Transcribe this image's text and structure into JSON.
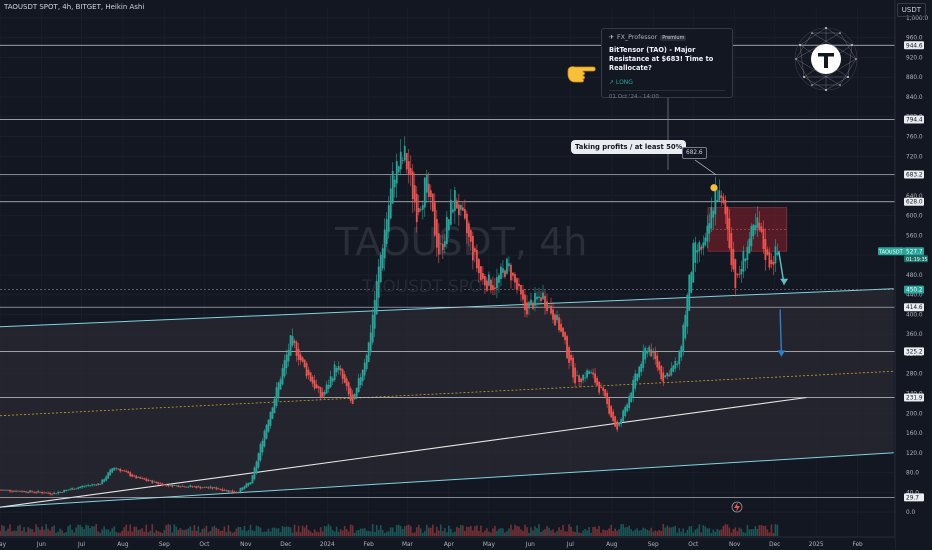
{
  "header": {
    "symbol_text": "TAOUSDT SPOT, 4h, BITGET, Heikin Ashi",
    "currency": "USDT"
  },
  "watermark": {
    "main": "TAOUSDT, 4h",
    "sub": "TAOUSDT SPOT"
  },
  "idea_popup": {
    "author": "FX_Professor",
    "badge": "Premium",
    "title": "BitTensor (TAO) - Major Resistance at $683! Time to Reallocate?",
    "tag": "↗ LONG",
    "date": "01 Oct '24 - 14:00"
  },
  "annotations": {
    "callout": "Taking profits / at least 50%",
    "peak_label": "682.6",
    "hand_icon": "pointing-hand-icon",
    "logo_icon": "t-network-logo-icon",
    "lightning_icon": "lightning-icon"
  },
  "colors": {
    "background": "#131722",
    "up": "#26a69a",
    "down": "#ef5350",
    "channel_fill": "#2a2a32",
    "channel_line": "#7fd4e0",
    "resistance_box": "#6b1e28",
    "arrow": "#2e7fc9"
  },
  "chart_data": {
    "type": "candlestick",
    "style": "Heikin Ashi",
    "symbol": "TAOUSDT",
    "x_range": [
      "2023-05",
      "2025-02"
    ],
    "x_ticks": [
      "May",
      "Jun",
      "Jul",
      "Aug",
      "Sep",
      "Oct",
      "Nov",
      "Dec",
      "2024",
      "Feb",
      "Mar",
      "Apr",
      "May",
      "Jun",
      "Jul",
      "Aug",
      "Sep",
      "Oct",
      "Nov",
      "Dec",
      "2025",
      "Feb"
    ],
    "y_ticks": [
      1000.0,
      960.0,
      920.0,
      880.0,
      840.0,
      800.0,
      760.0,
      720.0,
      680.0,
      640.0,
      600.0,
      560.0,
      520.0,
      480.0,
      440.0,
      400.0,
      360.0,
      320.0,
      280.0,
      240.0,
      200.0,
      160.0,
      120.0,
      80.0,
      40.0,
      0.0
    ],
    "y_tick_labels": [
      "1,000.0",
      "960.0",
      "920.0",
      "880.0",
      "840.0",
      "800.0",
      "760.0",
      "720.0",
      "680.0",
      "640.0",
      "600.0",
      "560.0",
      "520.0",
      "480.0",
      "440.0",
      "400.0",
      "360.0",
      "320.0",
      "280.0",
      "240.0",
      "200.0",
      "160.0",
      "120.0",
      "80.0",
      "40.0",
      "0.0"
    ],
    "ylim": [
      -20,
      1020
    ],
    "horizontal_levels": [
      944.6,
      794.4,
      683.2,
      628.0,
      414.6,
      325.2,
      231.9,
      29.7
    ],
    "price_labels": [
      {
        "value": 944.6,
        "label": "944.6",
        "style": "light"
      },
      {
        "value": 794.4,
        "label": "794.4",
        "style": "light"
      },
      {
        "value": 683.2,
        "label": "683.2",
        "style": "light"
      },
      {
        "value": 628.0,
        "label": "628.0",
        "style": "light"
      },
      {
        "value": 527.7,
        "label": "527.7",
        "style": "green",
        "symbol": "TAOUSDT",
        "countdown": "01:19:35"
      },
      {
        "value": 450.2,
        "label": "450.2",
        "style": "green"
      },
      {
        "value": 414.6,
        "label": "414.6",
        "style": "light"
      },
      {
        "value": 325.2,
        "label": "325.2",
        "style": "light"
      },
      {
        "value": 231.9,
        "label": "231.9",
        "style": "light"
      },
      {
        "value": 29.7,
        "label": "29.7",
        "style": "light"
      }
    ],
    "price_path": [
      [
        "2023-05-01",
        45
      ],
      [
        "2023-05-20",
        42
      ],
      [
        "2023-06-10",
        38
      ],
      [
        "2023-07-01",
        52
      ],
      [
        "2023-07-15",
        58
      ],
      [
        "2023-07-25",
        92
      ],
      [
        "2023-08-10",
        70
      ],
      [
        "2023-09-01",
        55
      ],
      [
        "2023-09-20",
        52
      ],
      [
        "2023-10-10",
        48
      ],
      [
        "2023-10-25",
        40
      ],
      [
        "2023-11-05",
        62
      ],
      [
        "2023-11-15",
        165
      ],
      [
        "2023-11-25",
        255
      ],
      [
        "2023-12-05",
        350
      ],
      [
        "2023-12-15",
        290
      ],
      [
        "2023-12-28",
        230
      ],
      [
        "2024-01-08",
        300
      ],
      [
        "2024-01-20",
        215
      ],
      [
        "2024-02-01",
        340
      ],
      [
        "2024-02-10",
        520
      ],
      [
        "2024-02-20",
        690
      ],
      [
        "2024-02-28",
        720
      ],
      [
        "2024-03-08",
        610
      ],
      [
        "2024-03-15",
        665
      ],
      [
        "2024-03-25",
        520
      ],
      [
        "2024-04-05",
        640
      ],
      [
        "2024-04-15",
        560
      ],
      [
        "2024-04-25",
        470
      ],
      [
        "2024-05-05",
        460
      ],
      [
        "2024-05-15",
        500
      ],
      [
        "2024-05-28",
        410
      ],
      [
        "2024-06-10",
        440
      ],
      [
        "2024-06-22",
        380
      ],
      [
        "2024-07-05",
        265
      ],
      [
        "2024-07-15",
        285
      ],
      [
        "2024-07-25",
        240
      ],
      [
        "2024-08-05",
        165
      ],
      [
        "2024-08-15",
        245
      ],
      [
        "2024-08-28",
        340
      ],
      [
        "2024-09-08",
        270
      ],
      [
        "2024-09-20",
        305
      ],
      [
        "2024-10-01",
        525
      ],
      [
        "2024-10-10",
        540
      ],
      [
        "2024-10-18",
        655
      ],
      [
        "2024-10-25",
        600
      ],
      [
        "2024-11-02",
        455
      ],
      [
        "2024-11-10",
        540
      ],
      [
        "2024-11-18",
        580
      ],
      [
        "2024-11-26",
        505
      ],
      [
        "2024-12-04",
        527.7
      ]
    ],
    "resistance_zone": {
      "x_start": "2024-10-12",
      "x_end": "2024-12-10",
      "y_low": 528,
      "y_high": 616
    },
    "channel": {
      "upper": [
        [
          "2023-05-01",
          375
        ],
        [
          "2025-02-28",
          452
        ]
      ],
      "lower": [
        [
          "2023-05-01",
          10
        ],
        [
          "2025-02-28",
          120
        ]
      ],
      "midline": [
        [
          "2023-05-01",
          195
        ],
        [
          "2025-02-28",
          285
        ]
      ]
    },
    "trendline": [
      [
        "2023-05-01",
        10
      ],
      [
        "2024-12-25",
        231.9
      ]
    ],
    "projection_arrows": [
      {
        "from": [
          "2024-12-04",
          527.7
        ],
        "to": [
          "2024-12-08",
          460
        ],
        "color": "teal"
      },
      {
        "from": [
          "2024-12-05",
          410
        ],
        "to": [
          "2024-12-06",
          315
        ],
        "color": "blue"
      }
    ],
    "annotation_points": [
      {
        "label": "682.6",
        "x": "2024-10-18",
        "y": 682.6
      }
    ]
  }
}
